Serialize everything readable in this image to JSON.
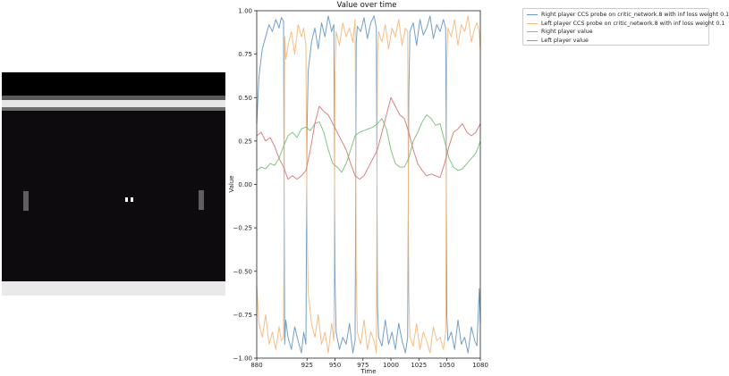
{
  "chart_data": {
    "type": "line",
    "title": "Value over time",
    "xlabel": "Time",
    "ylabel": "Value",
    "xlim": [
      880,
      1080
    ],
    "ylim": [
      -1.0,
      1.0
    ],
    "xticks": [
      880,
      925,
      950,
      975,
      1000,
      1025,
      1050,
      1080
    ],
    "yticks": [
      -1.0,
      -0.75,
      -0.5,
      -0.25,
      0.0,
      0.25,
      0.5,
      0.75,
      1.0
    ],
    "xtick_labels": [
      "880",
      "925",
      "950",
      "975",
      "1000",
      "1025",
      "1050",
      "1080"
    ],
    "ytick_labels": [
      "−1.00",
      "−0.75",
      "−0.50",
      "−0.25",
      "0.00",
      "0.25",
      "0.50",
      "0.75",
      "1.00"
    ],
    "grid": false,
    "legend_position": "outside-top-right",
    "series": [
      {
        "name": "Right player CCS probe on critic_network.8 with inf loss weight 0.1",
        "color": "#6d9ac4",
        "x": [
          880,
          882,
          885,
          888,
          891,
          894,
          897,
          900,
          902,
          904,
          905,
          906,
          908,
          911,
          914,
          917,
          920,
          922,
          924,
          925,
          926,
          929,
          932,
          935,
          938,
          941,
          944,
          947,
          949,
          950,
          951,
          954,
          957,
          960,
          963,
          966,
          968,
          969,
          970,
          973,
          976,
          979,
          982,
          985,
          987,
          988,
          989,
          992,
          995,
          998,
          1001,
          1004,
          1007,
          1010,
          1013,
          1015,
          1016,
          1017,
          1020,
          1023,
          1026,
          1029,
          1032,
          1035,
          1038,
          1041,
          1044,
          1047,
          1049,
          1050,
          1051,
          1054,
          1057,
          1060,
          1063,
          1066,
          1069,
          1072,
          1075,
          1077,
          1079,
          1080
        ],
        "y": [
          0.35,
          0.62,
          0.78,
          0.85,
          0.92,
          0.88,
          0.95,
          0.9,
          0.96,
          0.94,
          -0.92,
          -0.78,
          -0.88,
          -0.95,
          -0.82,
          -0.9,
          -0.97,
          -0.85,
          -0.92,
          0.3,
          0.65,
          0.82,
          0.9,
          0.78,
          0.93,
          0.85,
          0.97,
          0.88,
          0.92,
          -0.55,
          -0.85,
          -0.95,
          -0.88,
          -0.92,
          -0.8,
          -0.97,
          -0.9,
          0.82,
          0.91,
          0.88,
          0.96,
          0.84,
          0.93,
          0.97,
          0.9,
          -0.7,
          -0.88,
          -0.93,
          -0.78,
          -0.92,
          -0.85,
          -0.95,
          -0.8,
          -0.9,
          -0.97,
          -0.88,
          0.5,
          0.88,
          0.93,
          0.8,
          0.95,
          0.86,
          0.9,
          0.97,
          0.84,
          0.92,
          0.88,
          0.95,
          0.9,
          -0.75,
          -0.9,
          -0.85,
          -0.95,
          -0.78,
          -0.92,
          -0.88,
          -0.97,
          -0.82,
          -0.9,
          -0.93,
          -0.6,
          -0.8
        ]
      },
      {
        "name": "Left player CCS probe on critic_network.8 with inf loss weight 0.1",
        "color": "#f4ba80",
        "x": [
          880,
          882,
          885,
          888,
          891,
          894,
          897,
          900,
          902,
          904,
          905,
          906,
          908,
          911,
          914,
          917,
          920,
          922,
          924,
          925,
          926,
          929,
          932,
          935,
          938,
          941,
          944,
          947,
          949,
          950,
          951,
          954,
          957,
          960,
          963,
          966,
          968,
          969,
          970,
          973,
          976,
          979,
          982,
          985,
          987,
          988,
          989,
          992,
          995,
          998,
          1001,
          1004,
          1007,
          1010,
          1013,
          1015,
          1016,
          1017,
          1020,
          1023,
          1026,
          1029,
          1032,
          1035,
          1038,
          1041,
          1044,
          1047,
          1049,
          1050,
          1051,
          1054,
          1057,
          1060,
          1063,
          1066,
          1069,
          1072,
          1075,
          1077,
          1079,
          1080
        ],
        "y": [
          -0.58,
          -0.8,
          -0.88,
          -0.75,
          -0.92,
          -0.85,
          -0.95,
          -0.82,
          -0.9,
          -0.88,
          0.85,
          0.72,
          0.8,
          0.88,
          0.75,
          0.92,
          0.85,
          0.9,
          0.8,
          -0.2,
          -0.62,
          -0.8,
          -0.88,
          -0.75,
          -0.92,
          -0.85,
          -0.97,
          -0.8,
          -0.9,
          0.6,
          0.88,
          0.8,
          0.93,
          0.85,
          0.9,
          0.82,
          0.95,
          -0.5,
          -0.85,
          -0.92,
          -0.78,
          -0.95,
          -0.85,
          -0.9,
          -0.97,
          0.75,
          0.88,
          0.82,
          0.92,
          0.78,
          0.9,
          0.85,
          0.95,
          0.8,
          0.9,
          0.88,
          -0.6,
          -0.88,
          -0.93,
          -0.8,
          -0.95,
          -0.85,
          -0.9,
          -0.97,
          -0.82,
          -0.9,
          -0.88,
          -0.95,
          -0.85,
          0.72,
          0.9,
          0.85,
          0.95,
          0.8,
          0.92,
          0.88,
          0.97,
          0.82,
          0.9,
          0.93,
          0.88,
          0.78
        ]
      },
      {
        "name": "Right player value",
        "color": "#7cc17c",
        "x": [
          880,
          884,
          888,
          892,
          896,
          900,
          904,
          908,
          912,
          916,
          920,
          924,
          928,
          932,
          936,
          940,
          944,
          948,
          952,
          956,
          960,
          964,
          968,
          972,
          976,
          980,
          984,
          988,
          992,
          996,
          1000,
          1004,
          1008,
          1012,
          1016,
          1020,
          1024,
          1028,
          1032,
          1036,
          1040,
          1044,
          1048,
          1052,
          1056,
          1060,
          1064,
          1068,
          1072,
          1076,
          1080
        ],
        "y": [
          0.08,
          0.1,
          0.09,
          0.12,
          0.11,
          0.15,
          0.22,
          0.28,
          0.3,
          0.27,
          0.32,
          0.33,
          0.31,
          0.35,
          0.36,
          0.3,
          0.2,
          0.12,
          0.1,
          0.07,
          0.12,
          0.2,
          0.28,
          0.3,
          0.31,
          0.32,
          0.33,
          0.35,
          0.38,
          0.32,
          0.2,
          0.12,
          0.1,
          0.1,
          0.15,
          0.25,
          0.3,
          0.36,
          0.4,
          0.38,
          0.34,
          0.35,
          0.25,
          0.15,
          0.1,
          0.08,
          0.09,
          0.12,
          0.15,
          0.18,
          0.25
        ]
      },
      {
        "name": "Left player value",
        "color": "#d97a7a",
        "x": [
          880,
          884,
          888,
          892,
          896,
          900,
          904,
          908,
          912,
          916,
          920,
          924,
          928,
          932,
          936,
          940,
          944,
          948,
          952,
          956,
          960,
          964,
          968,
          972,
          976,
          980,
          984,
          988,
          992,
          996,
          1000,
          1004,
          1008,
          1012,
          1016,
          1020,
          1024,
          1028,
          1032,
          1036,
          1040,
          1044,
          1048,
          1052,
          1056,
          1060,
          1064,
          1068,
          1072,
          1076,
          1080
        ],
        "y": [
          0.28,
          0.3,
          0.25,
          0.27,
          0.22,
          0.15,
          0.1,
          0.03,
          0.05,
          0.03,
          0.05,
          0.08,
          0.2,
          0.35,
          0.45,
          0.42,
          0.4,
          0.35,
          0.3,
          0.25,
          0.2,
          0.12,
          0.05,
          0.03,
          0.05,
          0.1,
          0.15,
          0.2,
          0.3,
          0.4,
          0.5,
          0.45,
          0.4,
          0.38,
          0.3,
          0.2,
          0.12,
          0.08,
          0.05,
          0.06,
          0.05,
          0.04,
          0.12,
          0.22,
          0.3,
          0.32,
          0.35,
          0.3,
          0.28,
          0.3,
          0.35
        ]
      }
    ]
  }
}
